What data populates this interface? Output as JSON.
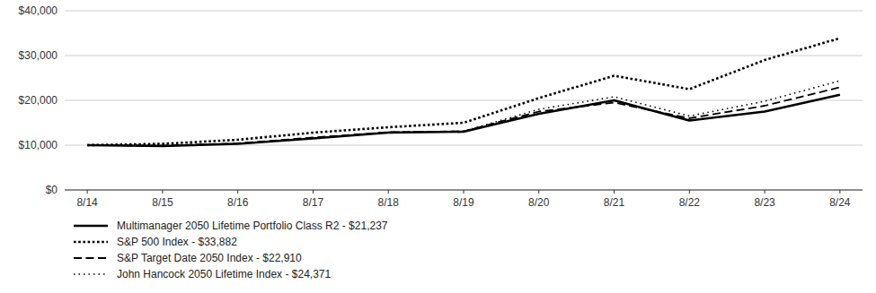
{
  "chart_data": {
    "type": "line",
    "categories": [
      "8/14",
      "8/15",
      "8/16",
      "8/17",
      "8/18",
      "8/19",
      "8/20",
      "8/21",
      "8/22",
      "8/23",
      "8/24"
    ],
    "series": [
      {
        "name": "Multimanager 2050 Lifetime Portfolio Class R2 - $21,237",
        "color": "#000000",
        "line_style": "solid",
        "values": [
          10000,
          9800,
          10300,
          11500,
          12800,
          13000,
          17000,
          20000,
          15500,
          17500,
          21237
        ]
      },
      {
        "name": "S&P 500 Index - $33,882",
        "color": "#000000",
        "line_style": "densedot",
        "values": [
          10000,
          10300,
          11200,
          12800,
          14000,
          15000,
          20500,
          25500,
          22500,
          29000,
          33882
        ]
      },
      {
        "name": "S&P Target Date 2050 Index - $22,910",
        "color": "#000000",
        "line_style": "dashed",
        "values": [
          10000,
          9900,
          10400,
          11700,
          12900,
          13100,
          17500,
          19500,
          16000,
          18800,
          22910
        ]
      },
      {
        "name": "John Hancock 2050 Lifetime Index - $24,371",
        "color": "#000000",
        "line_style": "loosedot",
        "values": [
          10000,
          9900,
          10350,
          11600,
          12900,
          13100,
          18000,
          20800,
          16500,
          19800,
          24371
        ]
      }
    ],
    "ylim": [
      0,
      40000
    ],
    "yticks": [
      {
        "value": 0,
        "label": "$0"
      },
      {
        "value": 10000,
        "label": "$10,000"
      },
      {
        "value": 20000,
        "label": "$20,000"
      },
      {
        "value": 30000,
        "label": "$30,000"
      },
      {
        "value": 40000,
        "label": "$40,000"
      }
    ],
    "grid": true,
    "legend": "bottom"
  }
}
